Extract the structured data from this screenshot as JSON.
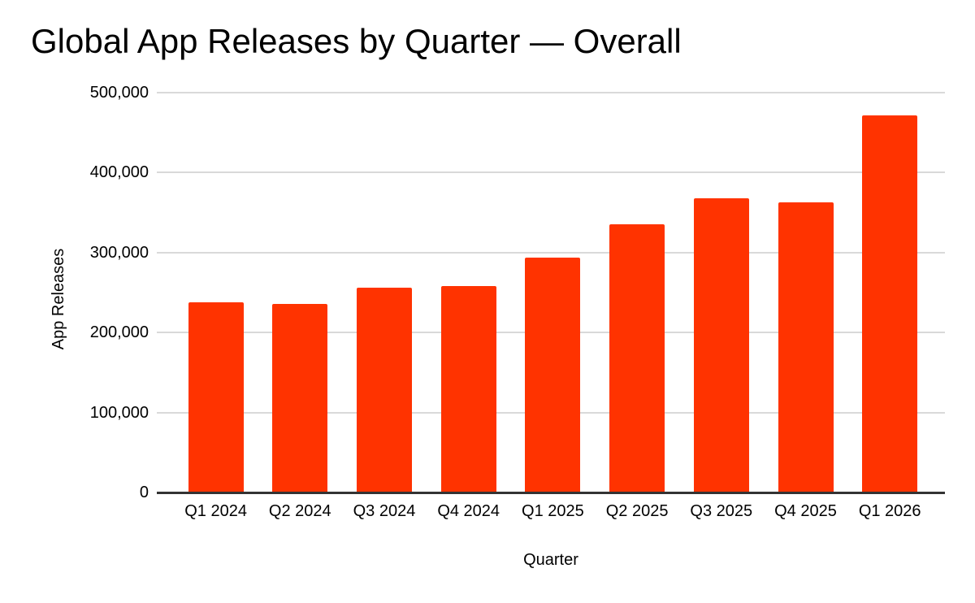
{
  "chart_data": {
    "type": "bar",
    "title": "Global App Releases by Quarter — Overall",
    "xlabel": "Quarter",
    "ylabel": "App Releases",
    "categories": [
      "Q1 2024",
      "Q2 2024",
      "Q3 2024",
      "Q4 2024",
      "Q1 2025",
      "Q2 2025",
      "Q3 2025",
      "Q4 2025",
      "Q1 2026"
    ],
    "values": [
      238000,
      236000,
      256000,
      258000,
      294000,
      335000,
      368000,
      363000,
      472000
    ],
    "ylim": [
      0,
      500000
    ],
    "ytick_values": [
      0,
      100000,
      200000,
      300000,
      400000,
      500000
    ],
    "ytick_labels": [
      "0",
      "100,000",
      "200,000",
      "300,000",
      "400,000",
      "500,000"
    ],
    "grid": "horizontal",
    "legend": "none",
    "colors": {
      "bar": "#FF3300",
      "gridline": "#D9D9D9",
      "axis_line": "#333333",
      "text": "#000000",
      "background": "#FFFFFF"
    }
  }
}
